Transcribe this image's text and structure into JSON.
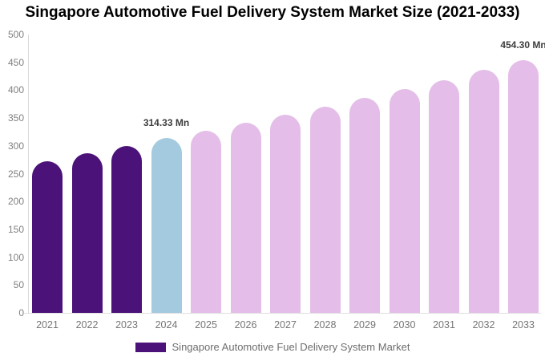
{
  "title": "Singapore Automotive Fuel Delivery System Market Size (2021-2033)",
  "legend": {
    "label": "Singapore Automotive Fuel Delivery System Market",
    "swatch_color": "#4b1279"
  },
  "colors": {
    "historical_bar": "#4b1279",
    "base_year_bar": "#a3cade",
    "forecast_bar": "#e4bee8",
    "axis_line": "#d9d9d9",
    "baseline": "#e0e0e0",
    "tick_text": "#808080",
    "xlabel_text": "#757575",
    "value_label_text": "#3d3d3d",
    "legend_text": "#6e6e6e",
    "title_text": "#000000"
  },
  "chart_data": {
    "type": "bar",
    "title": "Singapore Automotive Fuel Delivery System Market Size (2021-2033)",
    "unit": "Mn",
    "categories": [
      "2021",
      "2022",
      "2023",
      "2024",
      "2025",
      "2026",
      "2027",
      "2028",
      "2029",
      "2030",
      "2031",
      "2032",
      "2033"
    ],
    "values": [
      273,
      287,
      300,
      314.33,
      327.46,
      341.14,
      355.39,
      370.23,
      385.69,
      401.8,
      418.58,
      436.07,
      454.3
    ],
    "bar_colors": [
      "#4b1279",
      "#4b1279",
      "#4b1279",
      "#a3cade",
      "#e4bee8",
      "#e4bee8",
      "#e4bee8",
      "#e4bee8",
      "#e4bee8",
      "#e4bee8",
      "#e4bee8",
      "#e4bee8",
      "#e4bee8"
    ],
    "data_labels": [
      null,
      null,
      null,
      "314.33 Mn",
      null,
      null,
      null,
      null,
      null,
      null,
      null,
      null,
      "454.30 Mn"
    ],
    "xlabel": "",
    "ylabel": "",
    "ylim": [
      0,
      500
    ],
    "ytick_step": 50,
    "yticks": [
      0,
      50,
      100,
      150,
      200,
      250,
      300,
      350,
      400,
      450,
      500
    ],
    "grid": false,
    "legend_position": "bottom",
    "legend_entries": [
      "Singapore Automotive Fuel Delivery System Market"
    ]
  }
}
